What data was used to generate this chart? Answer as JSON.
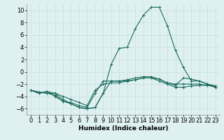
{
  "xlabel": "Humidex (Indice chaleur)",
  "x": [
    0,
    1,
    2,
    3,
    4,
    5,
    6,
    7,
    8,
    9,
    10,
    11,
    12,
    13,
    14,
    15,
    16,
    17,
    18,
    19,
    20,
    21,
    22,
    23
  ],
  "series": [
    [
      -3,
      -3.5,
      -3.2,
      -3.5,
      -4.5,
      -5.2,
      -5.8,
      -6.0,
      -5.8,
      -3.5,
      -1.5,
      -1.5,
      -1.5,
      -1.3,
      -1.0,
      -1.0,
      -1.5,
      -2.0,
      -2.5,
      -2.5,
      -2.3,
      -2.2,
      -2.2,
      -2.5
    ],
    [
      -3,
      -3.5,
      -3.2,
      -4.0,
      -4.8,
      -5.2,
      -5.8,
      -6.0,
      -5.8,
      -3.5,
      1.2,
      3.8,
      4.0,
      7.0,
      9.2,
      10.5,
      10.5,
      7.5,
      3.5,
      0.7,
      -1.5,
      -1.5,
      -2.0,
      -2.5
    ],
    [
      -3,
      -3.3,
      -3.5,
      -3.8,
      -4.8,
      -5.0,
      -5.5,
      -5.8,
      -3.5,
      -1.5,
      -1.5,
      -1.5,
      -1.3,
      -1.0,
      -0.8,
      -0.8,
      -1.2,
      -1.8,
      -2.2,
      -1.0,
      -1.2,
      -1.5,
      -2.0,
      -2.3
    ],
    [
      -3,
      -3.3,
      -3.5,
      -3.5,
      -4.0,
      -4.5,
      -5.0,
      -5.5,
      -3.0,
      -2.0,
      -1.8,
      -1.8,
      -1.5,
      -1.3,
      -1.0,
      -1.0,
      -1.2,
      -1.8,
      -2.0,
      -2.0,
      -2.0,
      -2.0,
      -2.2,
      -2.3
    ]
  ],
  "line_color": "#1a6b5e",
  "marker": "+",
  "markersize": 3,
  "linewidth": 0.8,
  "xlim": [
    -0.5,
    23.5
  ],
  "ylim": [
    -7,
    11
  ],
  "yticks": [
    -6,
    -4,
    -2,
    0,
    2,
    4,
    6,
    8,
    10
  ],
  "xticks": [
    0,
    1,
    2,
    3,
    4,
    5,
    6,
    7,
    8,
    9,
    10,
    11,
    12,
    13,
    14,
    15,
    16,
    17,
    18,
    19,
    20,
    21,
    22,
    23
  ],
  "grid_color": "#c8dede",
  "grid_color_major": "#b0cccc",
  "bg_color": "#dff0f0",
  "label_fontsize": 6.5,
  "tick_fontsize": 6.0
}
